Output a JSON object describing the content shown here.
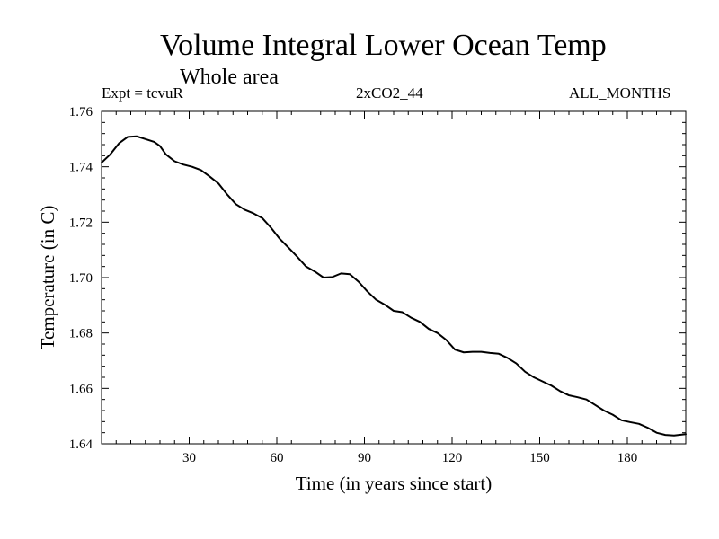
{
  "header": {
    "title": "Volume Integral Lower Ocean Temp",
    "subtitle": "Whole area",
    "expt": "Expt = tcvuR",
    "case": "2xCO2_44",
    "months": "ALL_MONTHS"
  },
  "chart_data": {
    "type": "line",
    "title": "Volume Integral Lower Ocean Temp",
    "subtitle": "Whole area",
    "xlabel": "Time (in years since start)",
    "ylabel": "Temperature (in C)",
    "xlim": [
      0,
      200
    ],
    "ylim": [
      1.64,
      1.76
    ],
    "xticks": [
      30,
      60,
      90,
      120,
      150,
      180
    ],
    "yticks": [
      1.64,
      1.66,
      1.68,
      1.7,
      1.72,
      1.74,
      1.76
    ],
    "ytick_labels": [
      "1.64",
      "1.66",
      "1.68",
      "1.70",
      "1.72",
      "1.74",
      "1.76"
    ],
    "grid": false,
    "line_color": "#000000",
    "series": [
      {
        "x": [
          0,
          3,
          6,
          9,
          12,
          15,
          18,
          20,
          22,
          25,
          28,
          31,
          34,
          37,
          40,
          43,
          46,
          49,
          52,
          55,
          58,
          61,
          64,
          67,
          70,
          73,
          76,
          79,
          82,
          85,
          88,
          91,
          94,
          97,
          100,
          103,
          106,
          109,
          112,
          115,
          118,
          121,
          124,
          127,
          130,
          133,
          136,
          139,
          142,
          145,
          148,
          151,
          154,
          157,
          160,
          163,
          166,
          169,
          172,
          175,
          178,
          181,
          184,
          187,
          190,
          193,
          196,
          200
        ],
        "y": [
          1.7415,
          1.7445,
          1.7485,
          1.7508,
          1.751,
          1.75,
          1.749,
          1.7475,
          1.7445,
          1.742,
          1.7408,
          1.74,
          1.7388,
          1.7365,
          1.734,
          1.73,
          1.7265,
          1.7245,
          1.7232,
          1.7215,
          1.718,
          1.714,
          1.7108,
          1.7075,
          1.704,
          1.7022,
          1.7,
          1.7002,
          1.7015,
          1.7012,
          1.6985,
          1.695,
          1.692,
          1.6902,
          1.688,
          1.6875,
          1.6855,
          1.684,
          1.6815,
          1.68,
          1.6775,
          1.674,
          1.673,
          1.6732,
          1.6732,
          1.6728,
          1.6725,
          1.671,
          1.669,
          1.666,
          1.664,
          1.6625,
          1.661,
          1.659,
          1.6575,
          1.6568,
          1.656,
          1.654,
          1.652,
          1.6505,
          1.6485,
          1.6478,
          1.6472,
          1.6458,
          1.644,
          1.6432,
          1.643,
          1.6435
        ]
      }
    ]
  }
}
